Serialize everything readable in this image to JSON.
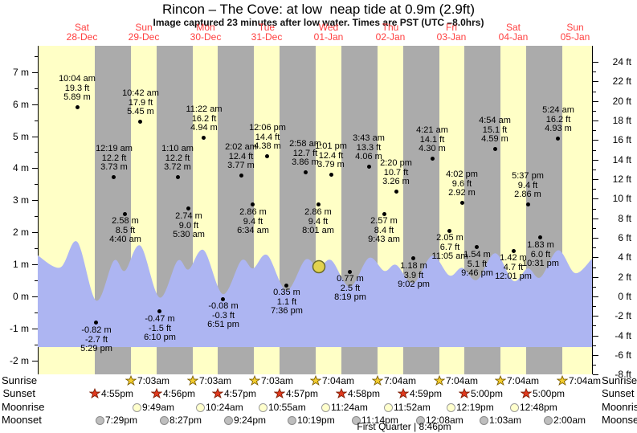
{
  "title": "Rincon – The Cove: at low  neap tide at 0.9m (2.9ft)",
  "subtitle": "Image captured 23 minutes after low water. Times are PST (UTC –8.0hrs)",
  "colors": {
    "day_band": "#FFFFC6",
    "night_band": "#ABABAB",
    "tide_fill": "#ADB5F2",
    "date_red": "#FF4040",
    "now_marker_fill": "#E2D24E",
    "now_marker_stroke": "#6B6B2A",
    "sunrise_star": "#F2CC2E",
    "sunrise_star_stroke": "#7A5C00",
    "sunset_star": "#E0391E",
    "sunset_star_stroke": "#7A1A00",
    "moonrise_fill": "#FFFFCC",
    "moonrise_stroke": "#999999",
    "moonset_fill": "#BEBEBE",
    "moonset_stroke": "#8A8A8A"
  },
  "days": [
    {
      "name": "Sat",
      "date": "28-Dec"
    },
    {
      "name": "Sun",
      "date": "29-Dec"
    },
    {
      "name": "Mon",
      "date": "30-Dec"
    },
    {
      "name": "Tue",
      "date": "31-Dec"
    },
    {
      "name": "Wed",
      "date": "01-Jan"
    },
    {
      "name": "Thu",
      "date": "02-Jan"
    },
    {
      "name": "Fri",
      "date": "03-Jan"
    },
    {
      "name": "Sat",
      "date": "04-Jan"
    },
    {
      "name": "Sun",
      "date": "05-Jan"
    }
  ],
  "axes": {
    "left_unit": "m",
    "right_unit": "ft",
    "left_ticks": [
      {
        "value": 7,
        "label": "7 m"
      },
      {
        "value": 6,
        "label": "6 m"
      },
      {
        "value": 5,
        "label": "5 m"
      },
      {
        "value": 4,
        "label": "4 m"
      },
      {
        "value": 3,
        "label": "3 m"
      },
      {
        "value": 2,
        "label": "2 m"
      },
      {
        "value": 1,
        "label": "1 m"
      },
      {
        "value": 0,
        "label": "0 m"
      },
      {
        "value": -1,
        "label": "-1 m"
      },
      {
        "value": -2,
        "label": "-2 m"
      }
    ],
    "right_ticks": [
      {
        "value": 24,
        "label": "24 ft"
      },
      {
        "value": 22,
        "label": "22 ft"
      },
      {
        "value": 20,
        "label": "20 ft"
      },
      {
        "value": 18,
        "label": "18 ft"
      },
      {
        "value": 16,
        "label": "16 ft"
      },
      {
        "value": 14,
        "label": "14 ft"
      },
      {
        "value": 12,
        "label": "12 ft"
      },
      {
        "value": 10,
        "label": "10 ft"
      },
      {
        "value": 8,
        "label": "8 ft"
      },
      {
        "value": 6,
        "label": "6 ft"
      },
      {
        "value": 4,
        "label": "4 ft"
      },
      {
        "value": 2,
        "label": "2 ft"
      },
      {
        "value": 0,
        "label": "0 ft"
      },
      {
        "value": -2,
        "label": "-2 ft"
      },
      {
        "value": -4,
        "label": "-4 ft"
      },
      {
        "value": -6,
        "label": "-6 ft"
      },
      {
        "value": -8,
        "label": "-8 ft"
      }
    ]
  },
  "chart_data": {
    "type": "area",
    "title": "Rincon – The Cove: at low  neap tide at 0.9m (2.9ft)",
    "subtitle": "Image captured 23 minutes after low water. Times are PST (UTC –8.0hrs)",
    "x_days": [
      "Sat 28-Dec",
      "Sun 29-Dec",
      "Mon 30-Dec",
      "Tue 31-Dec",
      "Wed 01-Jan",
      "Thu 02-Jan",
      "Fri 03-Jan",
      "Sat 04-Jan",
      "Sun 05-Jan"
    ],
    "y_left_axis": {
      "label": "m",
      "min": -2,
      "max": 7
    },
    "y_right_axis": {
      "label": "ft",
      "min": -8,
      "max": 24
    },
    "current": {
      "height_m": "0.9",
      "height_ft": "2.9",
      "note": "23 minutes after low water"
    },
    "tide_events": [
      {
        "di": 0,
        "day": "Sat 28-Dec",
        "type": "high",
        "time": "10:04 am",
        "ft": "19.3",
        "m": "5.89"
      },
      {
        "di": 0,
        "day": "Sat 28-Dec",
        "type": "low",
        "time": "5:29 pm",
        "ft": "-2.7",
        "m": "-0.82"
      },
      {
        "di": 1,
        "day": "Sun 29-Dec",
        "type": "high",
        "time": "12:19 am",
        "ft": "12.2",
        "m": "3.73"
      },
      {
        "di": 1,
        "day": "Sun 29-Dec",
        "type": "low",
        "time": "4:40 am",
        "ft": "8.5",
        "m": "2.58"
      },
      {
        "di": 1,
        "day": "Sun 29-Dec",
        "type": "high",
        "time": "10:42 am",
        "ft": "17.9",
        "m": "5.45"
      },
      {
        "di": 1,
        "day": "Sun 29-Dec",
        "type": "low",
        "time": "6:10 pm",
        "ft": "-1.5",
        "m": "-0.47"
      },
      {
        "di": 2,
        "day": "Mon 30-Dec",
        "type": "high",
        "time": "1:10 am",
        "ft": "12.2",
        "m": "3.72"
      },
      {
        "di": 2,
        "day": "Mon 30-Dec",
        "type": "low",
        "time": "5:30 am",
        "ft": "9.0",
        "m": "2.74"
      },
      {
        "di": 2,
        "day": "Mon 30-Dec",
        "type": "high",
        "time": "11:22 am",
        "ft": "16.2",
        "m": "4.94"
      },
      {
        "di": 2,
        "day": "Mon 30-Dec",
        "type": "low",
        "time": "6:51 pm",
        "ft": "-0.3",
        "m": "-0.08"
      },
      {
        "di": 3,
        "day": "Tue 31-Dec",
        "type": "high",
        "time": "2:02 am",
        "ft": "12.4",
        "m": "3.77"
      },
      {
        "di": 3,
        "day": "Tue 31-Dec",
        "type": "low",
        "time": "6:34 am",
        "ft": "9.4",
        "m": "2.86"
      },
      {
        "di": 3,
        "day": "Tue 31-Dec",
        "type": "high",
        "time": "12:06 pm",
        "ft": "14.4",
        "m": "4.38"
      },
      {
        "di": 3,
        "day": "Tue 31-Dec",
        "type": "low",
        "time": "7:36 pm",
        "ft": "1.1",
        "m": "0.35"
      },
      {
        "di": 4,
        "day": "Wed 01-Jan",
        "type": "high",
        "time": "2:58 am",
        "ft": "12.7",
        "m": "3.86"
      },
      {
        "di": 4,
        "day": "Wed 01-Jan",
        "type": "low",
        "time": "8:01 am",
        "ft": "9.4",
        "m": "2.86"
      },
      {
        "di": 4,
        "day": "Wed 01-Jan",
        "type": "high",
        "time": "1:01 pm",
        "ft": "12.4",
        "m": "3.79"
      },
      {
        "di": 4,
        "day": "Wed 01-Jan",
        "type": "low",
        "time": "8:19 pm",
        "ft": "2.5",
        "m": "0.77"
      },
      {
        "di": 5,
        "day": "Thu 02-Jan",
        "type": "high",
        "time": "3:43 am",
        "ft": "13.3",
        "m": "4.06"
      },
      {
        "di": 5,
        "day": "Thu 02-Jan",
        "type": "low",
        "time": "9:43 am",
        "ft": "8.4",
        "m": "2.57"
      },
      {
        "di": 5,
        "day": "Thu 02-Jan",
        "type": "high",
        "time": "2:20 pm",
        "ft": "10.7",
        "m": "3.26"
      },
      {
        "di": 5,
        "day": "Thu 02-Jan",
        "type": "low",
        "time": "9:02 pm",
        "ft": "3.9",
        "m": "1.18"
      },
      {
        "di": 6,
        "day": "Fri 03-Jan",
        "type": "high",
        "time": "4:21 am",
        "ft": "14.1",
        "m": "4.30"
      },
      {
        "di": 6,
        "day": "Fri 03-Jan",
        "type": "low",
        "time": "11:05 am",
        "ft": "6.7",
        "m": "2.05"
      },
      {
        "di": 6,
        "day": "Fri 03-Jan",
        "type": "high",
        "time": "4:02 pm",
        "ft": "9.6",
        "m": "2.92"
      },
      {
        "di": 6,
        "day": "Fri 03-Jan",
        "type": "low",
        "time": "9:46 pm",
        "ft": "5.1",
        "m": "1.54"
      },
      {
        "di": 7,
        "day": "Sat 04-Jan",
        "type": "high",
        "time": "4:54 am",
        "ft": "15.1",
        "m": "4.59"
      },
      {
        "di": 7,
        "day": "Sat 04-Jan",
        "type": "low",
        "time": "12:01 pm",
        "ft": "4.7",
        "m": "1.42"
      },
      {
        "di": 7,
        "day": "Sat 04-Jan",
        "type": "high",
        "time": "5:37 pm",
        "ft": "9.4",
        "m": "2.86"
      },
      {
        "di": 7,
        "day": "Sat 04-Jan",
        "type": "low",
        "time": "10:31 pm",
        "ft": "6.0",
        "m": "1.83"
      },
      {
        "di": 8,
        "day": "Sun 05-Jan",
        "type": "high",
        "time": "5:24 am",
        "ft": "16.2",
        "m": "4.93"
      }
    ],
    "sun_moon": {
      "row_labels": [
        "Sunrise",
        "Sunset",
        "Moonrise",
        "Moonset"
      ],
      "sunrise": [
        {
          "di": 1,
          "time": "7:03am"
        },
        {
          "di": 2,
          "time": "7:03am"
        },
        {
          "di": 3,
          "time": "7:03am"
        },
        {
          "di": 4,
          "time": "7:04am"
        },
        {
          "di": 5,
          "time": "7:04am"
        },
        {
          "di": 6,
          "time": "7:04am"
        },
        {
          "di": 7,
          "time": "7:04am"
        },
        {
          "di": 8,
          "time": "7:04am"
        }
      ],
      "sunset": [
        {
          "di": 0,
          "time": "4:55pm"
        },
        {
          "di": 1,
          "time": "4:56pm"
        },
        {
          "di": 2,
          "time": "4:57pm"
        },
        {
          "di": 3,
          "time": "4:57pm"
        },
        {
          "di": 4,
          "time": "4:58pm"
        },
        {
          "di": 5,
          "time": "4:59pm"
        },
        {
          "di": 6,
          "time": "5:00pm"
        },
        {
          "di": 7,
          "time": "5:00pm"
        }
      ],
      "moonrise": [
        {
          "di": 1,
          "time": "9:49am"
        },
        {
          "di": 2,
          "time": "10:24am"
        },
        {
          "di": 3,
          "time": "10:55am"
        },
        {
          "di": 4,
          "time": "11:24am"
        },
        {
          "di": 5,
          "time": "11:52am"
        },
        {
          "di": 6,
          "time": "12:19pm"
        },
        {
          "di": 7,
          "time": "12:48pm"
        }
      ],
      "moonset": [
        {
          "di": 0,
          "time": "7:29pm"
        },
        {
          "di": 1,
          "time": "8:27pm"
        },
        {
          "di": 2,
          "time": "9:24pm"
        },
        {
          "di": 3,
          "time": "10:19pm"
        },
        {
          "di": 4,
          "time": "11:14pm"
        },
        {
          "di": 6,
          "time": "12:08am"
        },
        {
          "di": 7,
          "time": "1:03am"
        },
        {
          "di": 8,
          "time": "2:00am"
        }
      ],
      "moon_phase": "First Quarter | 8:46pm"
    }
  }
}
